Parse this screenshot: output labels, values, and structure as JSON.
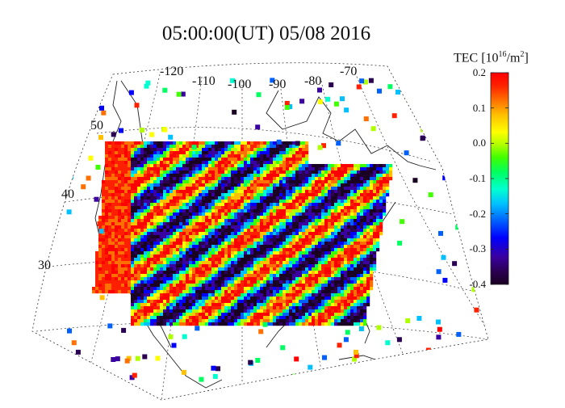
{
  "title": "05:00:00(UT)  05/08 2016",
  "colorbar": {
    "label_prefix": "TEC [10",
    "label_exp": "16",
    "label_suffix": "/m",
    "label_exp2": "2",
    "label_close": "]",
    "min": -0.4,
    "max": 0.2,
    "ticks": [
      "0.2",
      "0.1",
      "0.0",
      "-0.1",
      "-0.2",
      "-0.3",
      "-0.4"
    ],
    "tick_values": [
      0.2,
      0.1,
      0.0,
      -0.1,
      -0.2,
      -0.3,
      -0.4
    ],
    "colors": [
      "#1a0022",
      "#2a0050",
      "#3a00a0",
      "#0000ff",
      "#0060ff",
      "#00c0ff",
      "#00ffd0",
      "#00ff60",
      "#40ff00",
      "#b0ff00",
      "#ffff00",
      "#ffc000",
      "#ff7000",
      "#ff2000",
      "#ff0000"
    ]
  },
  "map": {
    "longitude_labels": [
      "-120",
      "-110",
      "-100",
      "-90",
      "-80",
      "-70"
    ],
    "latitude_labels": [
      "50",
      "40",
      "30"
    ]
  }
}
